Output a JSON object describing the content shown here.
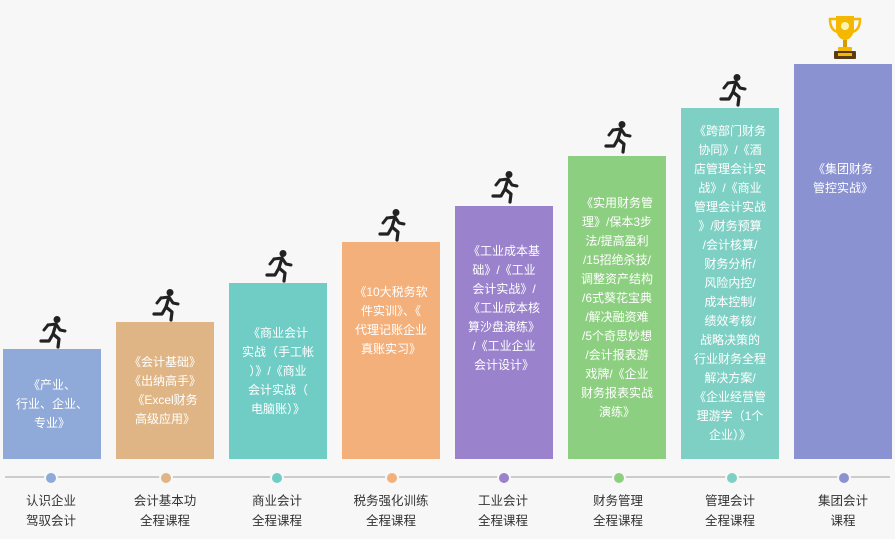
{
  "stages": [
    {
      "text": "《产业、\n行业、企业、\n专业》",
      "label": "认识企业\n驾驭会计",
      "color": "#8fa9d8",
      "dot": "#8fa9d8"
    },
    {
      "text": "《会计基础》\n《出纳高手》\n《Excel财务\n高级应用》",
      "label": "会计基本功\n全程课程",
      "color": "#dfb585",
      "dot": "#dfb585"
    },
    {
      "text": "《商业会计\n实战（手工帐\n）》/《商业\n会计实战（\n电脑账）》",
      "label": "商业会计\n全程课程",
      "color": "#6fcdc6",
      "dot": "#6fcdc6"
    },
    {
      "text": "《10大税务软\n件实训》、《\n代理记账企业\n真账实习》",
      "label": "税务强化训练\n全程课程",
      "color": "#f4b07b",
      "dot": "#f4b07b"
    },
    {
      "text": "《工业成本基\n础》/《工业\n会计实战》/\n《工业成本核\n算沙盘演练》\n/《工业企业\n会计设计》",
      "label": "工业会计\n全程课程",
      "color": "#9a82cc",
      "dot": "#9a82cc"
    },
    {
      "text": "《实用财务管\n理》/保本3步\n法/提高盈利\n/15招绝杀技/\n调整资产结构\n/6式葵花宝典\n/解决融资难\n/5个奇思妙想\n/会计报表游\n戏牌/《企业\n财务报表实战\n演练》",
      "label": "财务管理\n全程课程",
      "color": "#8dcf80",
      "dot": "#8dcf80"
    },
    {
      "text": "《跨部门财务\n协同》/《酒\n店管理会计实\n战》/《商业\n管理会计实战\n》/财务预算\n/会计核算/\n财务分析/\n风险内控/\n成本控制/\n绩效考核/\n战略决策的\n行业财务全程\n解决方案/\n《企业经营管\n理游学（1个\n企业）》",
      "label": "管理会计\n全程课程",
      "color": "#7fd0c4",
      "dot": "#7fd0c4"
    },
    {
      "text": "《集团财务\n管控实战》",
      "label": "集团会计\n课程",
      "color": "#8a92d2",
      "dot": "#8a92d2"
    }
  ],
  "icons": {
    "runner": "runner-icon",
    "trophy": "trophy-icon"
  }
}
